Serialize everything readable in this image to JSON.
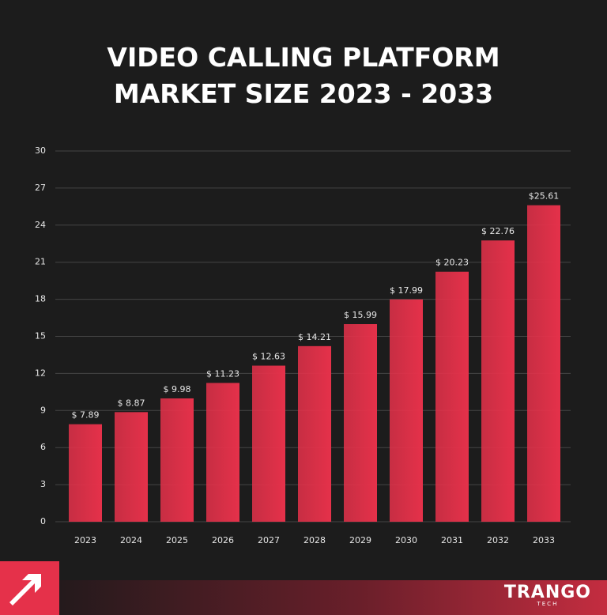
{
  "chart_data": {
    "type": "bar",
    "title": "VIDEO CALLING PLATFORM MARKET SIZE 2023 - 2033",
    "categories": [
      "2023",
      "2024",
      "2025",
      "2026",
      "2027",
      "2028",
      "2029",
      "2030",
      "2031",
      "2032",
      "2033"
    ],
    "values": [
      7.89,
      8.87,
      9.98,
      11.23,
      12.63,
      14.21,
      15.99,
      17.99,
      20.23,
      22.76,
      25.61
    ],
    "value_labels": [
      "$ 7.89",
      "$ 8.87",
      "$ 9.98",
      "$ 11.23",
      "$ 12.63",
      "$ 14.21",
      "$ 15.99",
      "$ 17.99",
      "$ 20.23",
      "$ 22.76",
      "$25.61"
    ],
    "color": "#e5314a",
    "ylim": [
      0,
      30
    ],
    "yticks": [
      0,
      3,
      6,
      9,
      12,
      15,
      18,
      21,
      24,
      27,
      30
    ],
    "grid": true
  },
  "brand": {
    "name": "TRANGO",
    "sub": "TECH"
  }
}
